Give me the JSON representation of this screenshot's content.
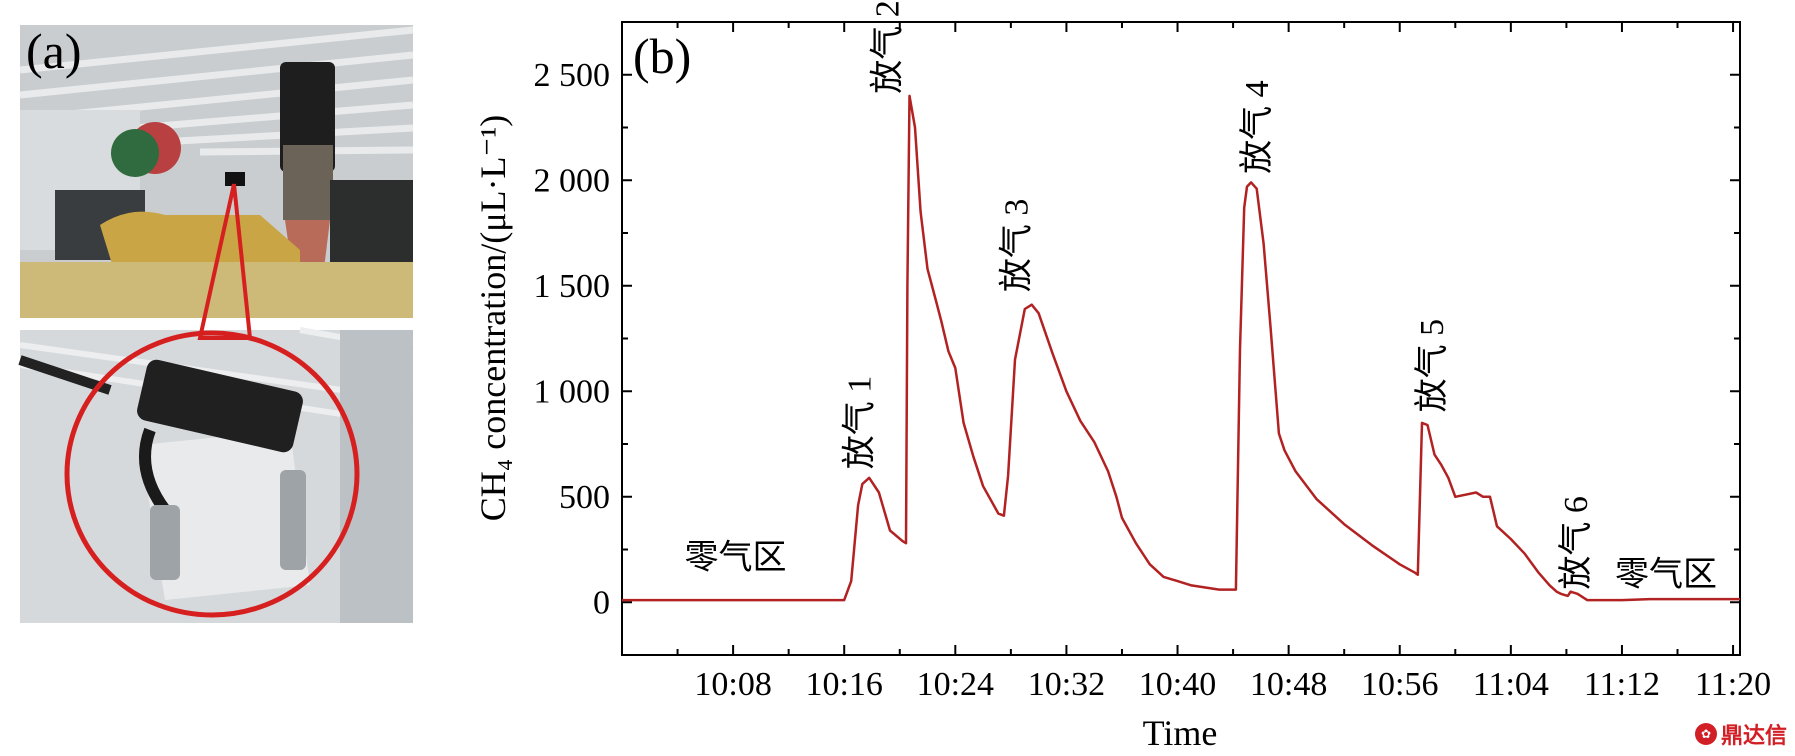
{
  "panel_a": {
    "label": "(a)",
    "photo_top": "equipment-room-photo",
    "photo_bottom": "sensor-closeup-photo",
    "callout_color": "#d62020"
  },
  "chart_data": {
    "type": "line",
    "panel_label": "(b)",
    "xlabel": "Time",
    "ylabel": "CH₄ concentration/(μL·L⁻¹)",
    "xlim": [
      0,
      80.5
    ],
    "ylim": [
      -250,
      2750
    ],
    "x_ticks": [
      {
        "value": 8,
        "label": "10:08"
      },
      {
        "value": 16,
        "label": "10:16"
      },
      {
        "value": 24,
        "label": "10:24"
      },
      {
        "value": 32,
        "label": "10:32"
      },
      {
        "value": 40,
        "label": "10:40"
      },
      {
        "value": 48,
        "label": "10:48"
      },
      {
        "value": 56,
        "label": "10:56"
      },
      {
        "value": 64,
        "label": "11:04"
      },
      {
        "value": 72,
        "label": "11:12"
      },
      {
        "value": 80,
        "label": "11:20"
      }
    ],
    "y_ticks": [
      {
        "value": 0,
        "label": "0"
      },
      {
        "value": 500,
        "label": "500"
      },
      {
        "value": 1000,
        "label": "1 000"
      },
      {
        "value": 1500,
        "label": "1 500"
      },
      {
        "value": 2000,
        "label": "2 000"
      },
      {
        "value": 2500,
        "label": "2 500"
      }
    ],
    "line_color": "#b22222",
    "series": [
      {
        "name": "CH4",
        "x": [
          0,
          16,
          16.5,
          17,
          17.3,
          17.8,
          18.5,
          19.3,
          20.2,
          20.45,
          20.55,
          20.7,
          21.1,
          21.5,
          22,
          22.6,
          23,
          23.5,
          24,
          24.6,
          25.3,
          26,
          27.1,
          27.5,
          27.8,
          28.3,
          29,
          29.5,
          30,
          31,
          32,
          33,
          34,
          35,
          35.6,
          36,
          37,
          38,
          39,
          40,
          41,
          43,
          44.2,
          44.5,
          44.8,
          45,
          45.3,
          45.7,
          46.2,
          46.7,
          47.3,
          47.7,
          48.5,
          50,
          52,
          54,
          56,
          57.1,
          57.3,
          57.6,
          58,
          58.5,
          59,
          59.5,
          60,
          61.5,
          62,
          62.5,
          63,
          64,
          65,
          66,
          66.8,
          67.3,
          67.6,
          68.1,
          68.3,
          68.8,
          69.5,
          70.5,
          72,
          74,
          76,
          78,
          80.5
        ],
        "y": [
          10,
          10,
          100,
          460,
          560,
          590,
          520,
          340,
          290,
          280,
          1500,
          2400,
          2250,
          1850,
          1580,
          1430,
          1330,
          1190,
          1110,
          850,
          690,
          550,
          420,
          410,
          600,
          1150,
          1390,
          1410,
          1370,
          1180,
          1000,
          860,
          760,
          620,
          500,
          400,
          280,
          180,
          120,
          100,
          80,
          60,
          60,
          1200,
          1870,
          1970,
          1990,
          1960,
          1700,
          1300,
          800,
          720,
          620,
          490,
          370,
          270,
          180,
          140,
          130,
          850,
          840,
          700,
          650,
          590,
          500,
          520,
          500,
          500,
          360,
          300,
          230,
          140,
          80,
          50,
          40,
          30,
          50,
          40,
          10,
          10,
          10,
          15,
          15,
          15,
          15
        ]
      }
    ],
    "annotations": [
      {
        "text": "零气区",
        "x": 4.5,
        "y": 160,
        "rotation": 0
      },
      {
        "text": "放气 1",
        "x": 17.9,
        "y": 630,
        "rotation": -90
      },
      {
        "text": "放气 2",
        "x": 19.9,
        "y": 2410,
        "rotation": -90
      },
      {
        "text": "放气 3",
        "x": 29.2,
        "y": 1470,
        "rotation": -90
      },
      {
        "text": "放气 4",
        "x": 46.5,
        "y": 2030,
        "rotation": -90
      },
      {
        "text": "放气 5",
        "x": 59.1,
        "y": 900,
        "rotation": -90
      },
      {
        "text": "放气 6",
        "x": 69.5,
        "y": 60,
        "rotation": -90
      },
      {
        "text": "零气区",
        "x": 71.5,
        "y": 80,
        "rotation": 0
      }
    ]
  },
  "watermark": {
    "icon": "dingda-logo-icon",
    "text": "鼎达信"
  }
}
